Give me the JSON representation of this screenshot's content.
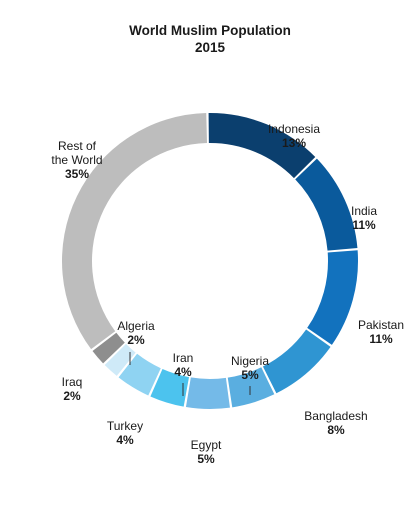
{
  "title_line1": "World Muslim Population",
  "title_line2": "2015",
  "chart_data": {
    "type": "pie",
    "title": "World Muslim Population 2015",
    "unit": "%",
    "donut": true,
    "legend": "none",
    "categories": [
      "Indonesia",
      "India",
      "Pakistan",
      "Bangladesh",
      "Nigeria",
      "Egypt",
      "Iran",
      "Turkey",
      "Algeria",
      "Iraq",
      "Rest of the World"
    ],
    "values": [
      13,
      11,
      11,
      8,
      5,
      5,
      4,
      4,
      2,
      2,
      35
    ],
    "percent_labels": [
      "13%",
      "11%",
      "11%",
      "8%",
      "5%",
      "5%",
      "4%",
      "4%",
      "2%",
      "2%",
      "35%"
    ],
    "colors": [
      "#0b3f6e",
      "#0a5a9c",
      "#1272be",
      "#2f95d2",
      "#5aaee0",
      "#74bae8",
      "#4cc3ee",
      "#8fd3f2",
      "#cfeaf8",
      "#8e8e8e",
      "#bdbdbd"
    ]
  }
}
